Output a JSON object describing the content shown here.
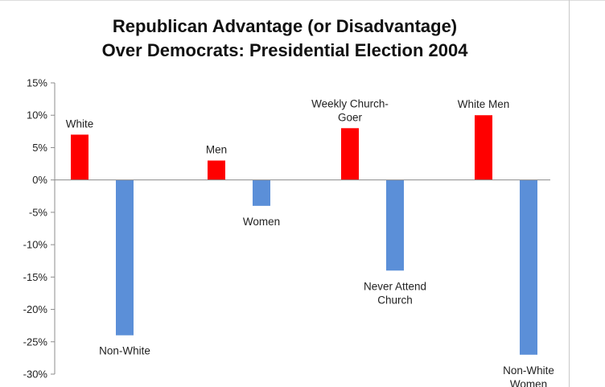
{
  "chart_data": {
    "type": "bar",
    "title_lines": [
      "Republican Advantage (or Disadvantage)",
      "Over Democrats:  Presidential Election 2004"
    ],
    "xlabel": "",
    "ylabel": "",
    "ylim": [
      -30,
      15
    ],
    "yticks": [
      15,
      10,
      5,
      0,
      -5,
      -10,
      -15,
      -20,
      -25,
      -30
    ],
    "ytick_labels": [
      "15%",
      "10%",
      "5%",
      "0%",
      "-5%",
      "-10%",
      "-15%",
      "-20%",
      "-25%",
      "-30%"
    ],
    "grid": false,
    "legend": "none",
    "colors": {
      "positive": "#ff0000",
      "negative": "#5b8fd8"
    },
    "groups": [
      {
        "bars": [
          {
            "label_lines": [
              "White"
            ],
            "value": 7
          },
          {
            "label_lines": [
              "Non-White"
            ],
            "value": -24
          }
        ]
      },
      {
        "bars": [
          {
            "label_lines": [
              "Men"
            ],
            "value": 3
          },
          {
            "label_lines": [
              "Women"
            ],
            "value": -4
          }
        ]
      },
      {
        "bars": [
          {
            "label_lines": [
              "Weekly Church-",
              "Goer"
            ],
            "value": 8
          },
          {
            "label_lines": [
              "Never Attend",
              "Church"
            ],
            "value": -14
          }
        ]
      },
      {
        "bars": [
          {
            "label_lines": [
              "White Men"
            ],
            "value": 10
          },
          {
            "label_lines": [
              "Non-White",
              "Women"
            ],
            "value": -27
          }
        ]
      }
    ]
  }
}
